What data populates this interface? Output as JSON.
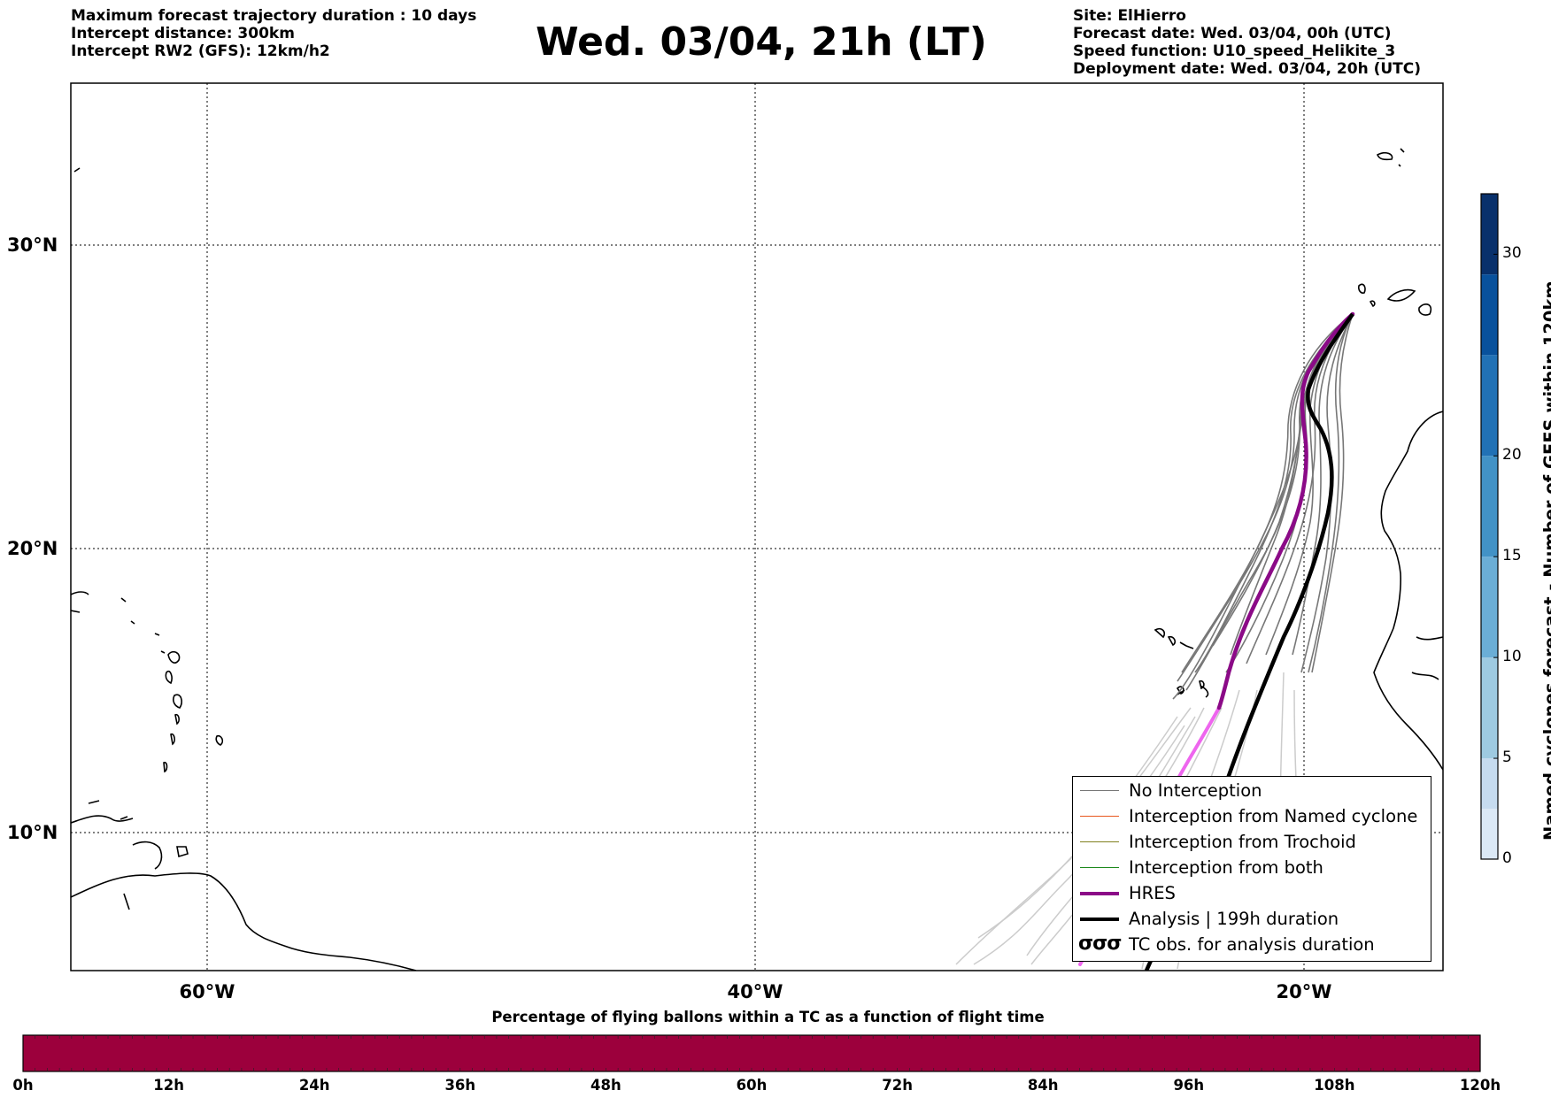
{
  "header_left": {
    "line1": "Maximum forecast trajectory duration : 10 days",
    "line2": "Intercept distance: 300km",
    "line3": "Intercept RW2 (GFS):  12km/h2"
  },
  "title": "Wed. 03/04, 21h (LT)",
  "header_right": {
    "site": "Site: ElHierro",
    "forecast_date": "Forecast date: Wed. 03/04, 00h (UTC)",
    "speed_function": "Speed function: U10_speed_Helikite_3",
    "deployment_date": "Deployment date: Wed. 03/04, 20h (UTC)"
  },
  "map": {
    "lat_labels": [
      "30°N",
      "20°N",
      "10°N"
    ],
    "lon_labels": [
      "60°W",
      "40°W",
      "20°W"
    ],
    "colors": {
      "ensemble": "#777777",
      "ensemble_faded": "#cccccc",
      "hres": "#8b0a87",
      "hres_faded": "#ee66ee",
      "analysis": "#000000"
    }
  },
  "legend": {
    "items": [
      {
        "label": "No Interception",
        "color": "#777777"
      },
      {
        "label": "Interception from Named cyclone",
        "color": "#e8561e"
      },
      {
        "label": "Interception from Trochoid",
        "color": "#808020"
      },
      {
        "label": "Interception from both",
        "color": "#1e8a1e"
      },
      {
        "label": "HRES",
        "color": "#8b0a87"
      },
      {
        "label": "Analysis | 199h duration",
        "color": "#000000"
      },
      {
        "label": "TC obs. for analysis duration",
        "icon": "tc-symbol-icon"
      }
    ],
    "tc_symbols": "σσσ"
  },
  "right_colorbar": {
    "title": "Named cyclones forecast - Number of GEFS within 120km",
    "ticks": [
      "0",
      "5",
      "10",
      "15",
      "20",
      "30"
    ],
    "colors": [
      "#dbe8f5",
      "#c6dbef",
      "#9ecae1",
      "#6baed6",
      "#4292c6",
      "#2171b5",
      "#08519c",
      "#08306b"
    ]
  },
  "bottom_colorbar": {
    "title": "Percentage of flying ballons within a TC as a function of flight time",
    "ticks": [
      "0h",
      "12h",
      "24h",
      "36h",
      "48h",
      "60h",
      "72h",
      "84h",
      "96h",
      "108h",
      "120h"
    ],
    "fill_color": "#9c003c"
  }
}
